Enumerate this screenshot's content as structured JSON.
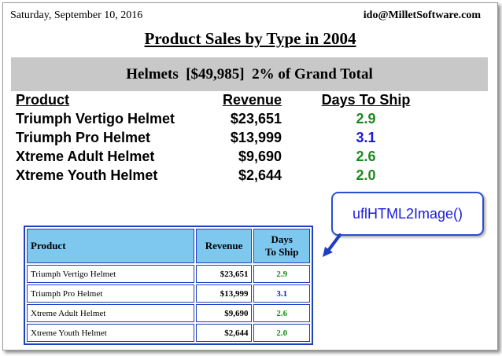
{
  "header": {
    "date": "Saturday, September 10, 2016",
    "email": "ido@MilletSoftware.com"
  },
  "title": "Product Sales by Type in 2004",
  "group": {
    "name": "Helmets",
    "total": "[$49,985]",
    "pct_text": "2% of Grand Total"
  },
  "columns": {
    "product": "Product",
    "revenue": "Revenue",
    "days": "Days To Ship"
  },
  "rows": [
    {
      "product": "Triumph Vertigo Helmet",
      "revenue": "$23,651",
      "days": "2.9",
      "days_color": "#1a8a1a"
    },
    {
      "product": "Triumph Pro Helmet",
      "revenue": "$13,999",
      "days": "3.1",
      "days_color": "#1a1ad8"
    },
    {
      "product": "Xtreme Adult Helmet",
      "revenue": "$9,690",
      "days": "2.6",
      "days_color": "#1a8a1a"
    },
    {
      "product": "Xtreme Youth Helmet",
      "revenue": "$2,644",
      "days": "2.0",
      "days_color": "#1a8a1a"
    }
  ],
  "callout": {
    "text": "uflHTML2Image()"
  },
  "mini_table": {
    "headers": {
      "product": "Product",
      "revenue": "Revenue",
      "days_line1": "Days",
      "days_line2": "To Ship"
    }
  },
  "colors": {
    "header_fill": "#7ec8f0",
    "border_blue": "#1e3fbf",
    "group_bar": "#c8c8c8"
  }
}
